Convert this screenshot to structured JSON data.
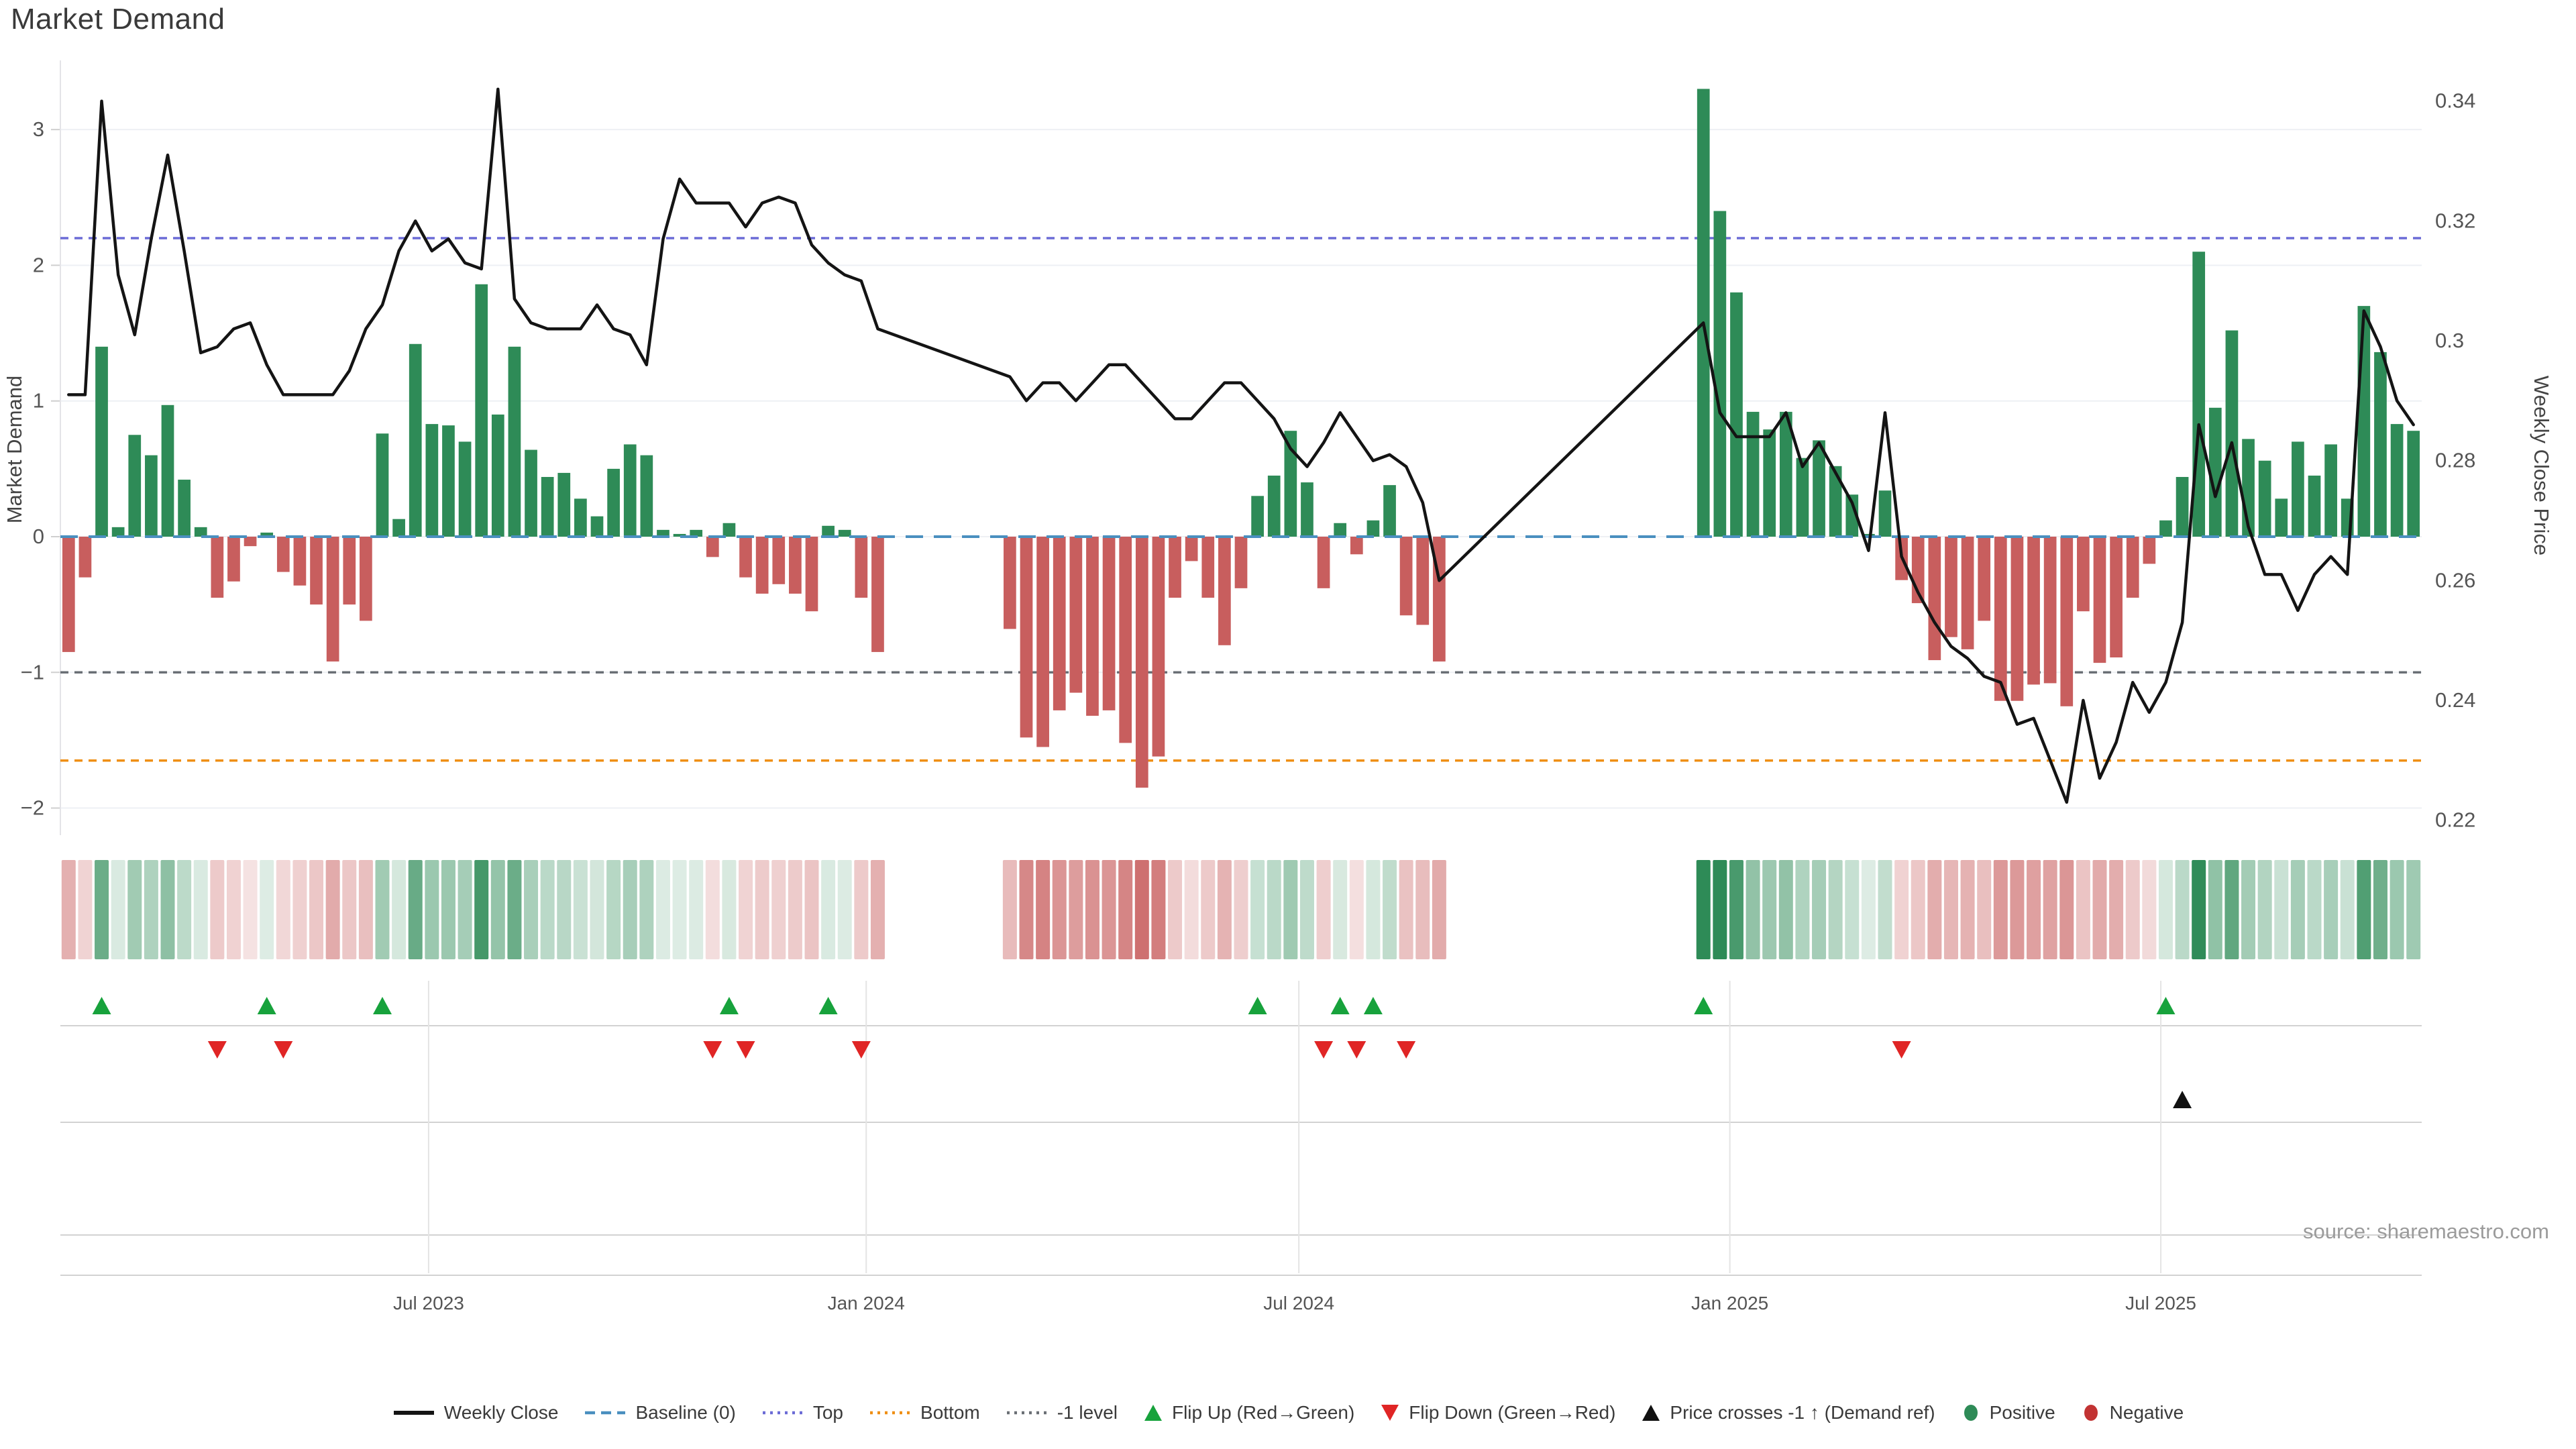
{
  "page": {
    "title": "Market Demand",
    "source_note": "source: sharemaestro.com"
  },
  "axes": {
    "left_title": "Market Demand",
    "right_title": "Weekly Close Price",
    "left_ticks": [
      {
        "label": "3",
        "value": 3
      },
      {
        "label": "2",
        "value": 2
      },
      {
        "label": "1",
        "value": 1
      },
      {
        "label": "0",
        "value": 0
      },
      {
        "label": "−1",
        "value": -1
      },
      {
        "label": "−2",
        "value": -2
      }
    ],
    "right_ticks": [
      {
        "label": "0.34",
        "value": 0.34
      },
      {
        "label": "0.32",
        "value": 0.32
      },
      {
        "label": "0.3",
        "value": 0.3
      },
      {
        "label": "0.28",
        "value": 0.28
      },
      {
        "label": "0.26",
        "value": 0.26
      },
      {
        "label": "0.24",
        "value": 0.24
      },
      {
        "label": "0.22",
        "value": 0.22
      }
    ]
  },
  "chart_data": {
    "type": "bar",
    "subtype": "weekly demand bars + weekly close price line + intensity heat strip + event marker rows",
    "title": "Market Demand",
    "xlabel": "",
    "ylabel": "Market Demand",
    "ylabel_right": "Weekly Close Price",
    "demand_range": [
      -2.2,
      3.51
    ],
    "price_range": [
      0.2175,
      0.3468
    ],
    "x_ticks": [
      {
        "label": "Jul 2023",
        "week": 22.3
      },
      {
        "label": "Jan 2024",
        "week": 48.8
      },
      {
        "label": "Jul 2024",
        "week": 75.0
      },
      {
        "label": "Jan 2025",
        "week": 101.1
      },
      {
        "label": "Jul 2025",
        "week": 127.2
      }
    ],
    "series": [
      {
        "name": "Market Demand",
        "type": "bar",
        "axis": "left",
        "values": [
          -0.85,
          -0.3,
          1.4,
          0.07,
          0.75,
          0.6,
          0.97,
          0.42,
          0.07,
          -0.45,
          -0.33,
          -0.07,
          0.03,
          -0.26,
          -0.36,
          -0.5,
          -0.92,
          -0.5,
          -0.62,
          0.76,
          0.13,
          1.42,
          0.83,
          0.82,
          0.7,
          1.86,
          0.9,
          1.4,
          0.64,
          0.44,
          0.47,
          0.28,
          0.15,
          0.5,
          0.68,
          0.6,
          0.05,
          0.02,
          0.05,
          -0.15,
          0.1,
          -0.3,
          -0.42,
          -0.35,
          -0.42,
          -0.55,
          0.08,
          0.05,
          -0.45,
          -0.85,
          null,
          null,
          null,
          null,
          null,
          null,
          null,
          -0.68,
          -1.48,
          -1.55,
          -1.28,
          -1.15,
          -1.32,
          -1.28,
          -1.52,
          -1.85,
          -1.62,
          -0.45,
          -0.18,
          -0.45,
          -0.8,
          -0.38,
          0.3,
          0.45,
          0.78,
          0.4,
          -0.38,
          0.1,
          -0.13,
          0.12,
          0.38,
          -0.58,
          -0.65,
          -0.92,
          null,
          null,
          null,
          null,
          null,
          null,
          null,
          null,
          null,
          null,
          null,
          null,
          null,
          null,
          null,
          3.3,
          2.4,
          1.8,
          0.92,
          0.79,
          0.92,
          0.58,
          0.71,
          0.52,
          0.31,
          0.02,
          0.34,
          -0.32,
          -0.49,
          -0.91,
          -0.74,
          -0.83,
          -0.62,
          -1.21,
          -1.21,
          -1.09,
          -1.08,
          -1.25,
          -0.55,
          -0.93,
          -0.89,
          -0.45,
          -0.2,
          0.12,
          0.44,
          2.1,
          0.95,
          1.52,
          0.72,
          0.56,
          0.28,
          0.7,
          0.45,
          0.68,
          0.28,
          1.7,
          1.36,
          0.83,
          0.78
        ]
      },
      {
        "name": "Weekly Close",
        "type": "line",
        "axis": "right",
        "values": [
          0.291,
          0.291,
          0.34,
          0.311,
          0.301,
          0.317,
          0.331,
          0.315,
          0.298,
          0.299,
          0.302,
          0.303,
          0.296,
          0.291,
          0.291,
          0.291,
          0.291,
          0.295,
          0.302,
          0.306,
          0.315,
          0.32,
          0.315,
          0.317,
          0.313,
          0.312,
          0.342,
          0.307,
          0.303,
          0.302,
          0.302,
          0.302,
          0.306,
          0.302,
          0.301,
          0.296,
          0.317,
          0.327,
          0.323,
          0.323,
          0.323,
          0.319,
          0.323,
          0.324,
          0.323,
          0.316,
          0.313,
          0.311,
          0.31,
          0.302,
          null,
          null,
          null,
          null,
          null,
          null,
          null,
          0.294,
          0.29,
          0.293,
          0.293,
          0.29,
          0.293,
          0.296,
          0.296,
          0.293,
          0.29,
          0.287,
          0.287,
          0.29,
          0.293,
          0.293,
          0.29,
          0.287,
          0.282,
          0.279,
          0.283,
          0.288,
          0.284,
          0.28,
          0.281,
          0.279,
          0.273,
          0.26,
          null,
          null,
          null,
          null,
          null,
          null,
          null,
          null,
          null,
          null,
          null,
          null,
          null,
          null,
          null,
          0.303,
          0.288,
          0.284,
          0.284,
          0.284,
          0.288,
          0.279,
          0.283,
          0.278,
          0.273,
          0.265,
          0.288,
          0.264,
          0.258,
          0.253,
          0.249,
          0.247,
          0.244,
          0.243,
          0.236,
          0.237,
          0.23,
          0.223,
          0.24,
          0.227,
          0.233,
          0.243,
          0.238,
          0.243,
          0.253,
          0.286,
          0.274,
          0.283,
          0.269,
          0.261,
          0.261,
          0.255,
          0.261,
          0.264,
          0.261,
          0.305,
          0.299,
          0.29,
          0.286
        ]
      }
    ],
    "ref_lines": [
      {
        "name": "Baseline (0)",
        "value": 0,
        "style": "dashed",
        "color": "#4a8fbf"
      },
      {
        "name": "Top",
        "value": 2.2,
        "style": "dotted",
        "color": "#6b6bd6"
      },
      {
        "name": "Bottom",
        "value": -1.65,
        "style": "dotted",
        "color": "#ef8f15"
      },
      {
        "name": "-1 level",
        "value": -1.0,
        "style": "dotted",
        "color": "#6a6f75"
      }
    ],
    "markers": {
      "flip_up_weeks": [
        3,
        13,
        20,
        41,
        47,
        73,
        78,
        80,
        100,
        128
      ],
      "flip_down_weeks": [
        10,
        14,
        40,
        42,
        49,
        77,
        79,
        82,
        112
      ],
      "price_cross_up_weeks": [
        129
      ]
    },
    "colors": {
      "bar_positive": "#2e8b57",
      "bar_negative": "#c85e5e",
      "price_line": "#141414",
      "flip_up": "#17a23c",
      "flip_down": "#e02525",
      "price_cross": "#111111",
      "grid": "#eef0f4"
    },
    "grid": true,
    "legend_position": "bottom-center"
  },
  "legend": {
    "items": [
      {
        "label": "Weekly Close",
        "swatch": "line",
        "color": "#141414"
      },
      {
        "label": "Baseline (0)",
        "swatch": "dashes",
        "color": "#4a8fbf"
      },
      {
        "label": "Top",
        "swatch": "dots",
        "color": "#6b6bd6"
      },
      {
        "label": "Bottom",
        "swatch": "dots",
        "color": "#ef8f15"
      },
      {
        "label": "-1 level",
        "swatch": "dots",
        "color": "#6a6f75"
      },
      {
        "label": "Flip Up (Red→Green)",
        "swatch": "triangle-up",
        "color": "#17a23c"
      },
      {
        "label": "Flip Down (Green→Red)",
        "swatch": "triangle-down",
        "color": "#e02525"
      },
      {
        "label": "Price crosses -1 ↑ (Demand ref)",
        "swatch": "triangle-up",
        "color": "#111111"
      },
      {
        "label": "Positive",
        "swatch": "circle",
        "color": "#2e8b57"
      },
      {
        "label": "Negative",
        "swatch": "circle",
        "color": "#c23333"
      }
    ]
  }
}
